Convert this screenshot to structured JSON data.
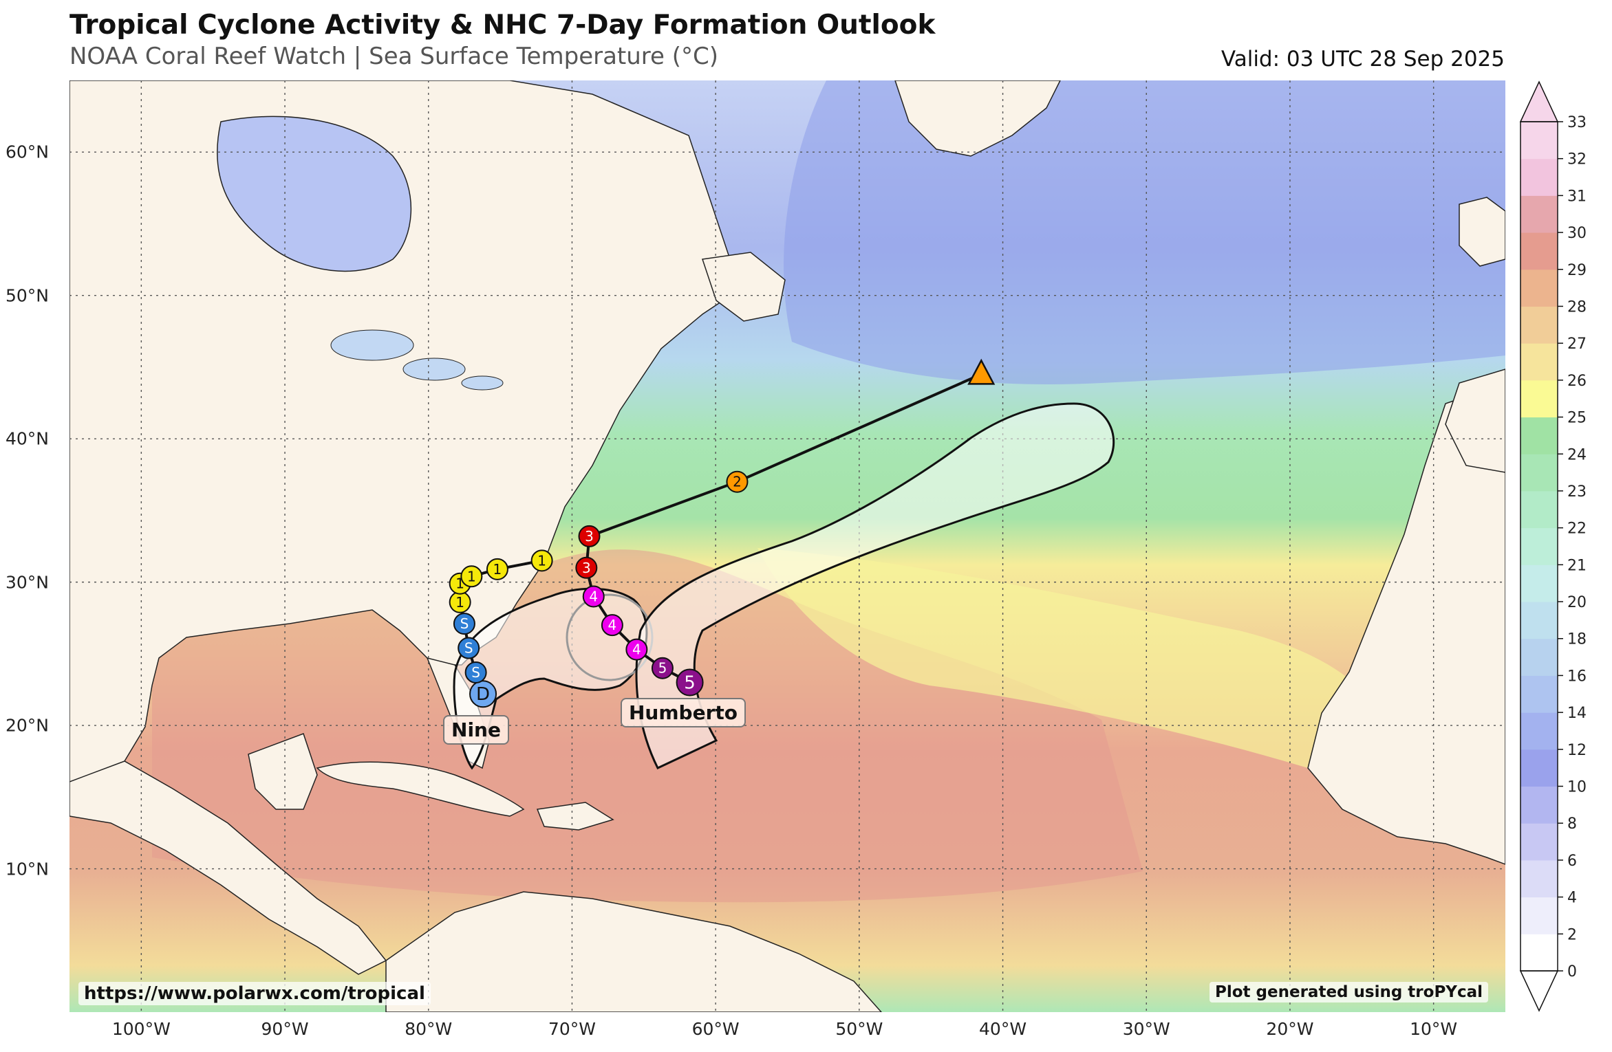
{
  "header": {
    "title": "Tropical Cyclone Activity & NHC 7-Day Formation Outlook",
    "subtitle": "NOAA Coral Reef Watch | Sea Surface Temperature (°C)",
    "valid": "Valid: 03 UTC 28 Sep 2025"
  },
  "map": {
    "lon_range": [
      -105,
      -5
    ],
    "lat_range": [
      0,
      65
    ],
    "lon_labels": [
      {
        "lon": -100,
        "label": "100°W"
      },
      {
        "lon": -90,
        "label": "90°W"
      },
      {
        "lon": -80,
        "label": "80°W"
      },
      {
        "lon": -70,
        "label": "70°W"
      },
      {
        "lon": -60,
        "label": "60°W"
      },
      {
        "lon": -50,
        "label": "50°W"
      },
      {
        "lon": -40,
        "label": "40°W"
      },
      {
        "lon": -30,
        "label": "30°W"
      },
      {
        "lon": -20,
        "label": "20°W"
      },
      {
        "lon": -10,
        "label": "10°W"
      }
    ],
    "lat_labels": [
      {
        "lat": 60,
        "label": "60°N"
      },
      {
        "lat": 50,
        "label": "50°N"
      },
      {
        "lat": 40,
        "label": "40°N"
      },
      {
        "lat": 30,
        "label": "30°N"
      },
      {
        "lat": 20,
        "label": "20°N"
      },
      {
        "lat": 10,
        "label": "10°N"
      }
    ],
    "colors": {
      "land": "#faf3e8",
      "coast": "#222222",
      "grid": "#555555"
    }
  },
  "colorbar": {
    "ticks": [
      "0",
      "2",
      "4",
      "6",
      "8",
      "10",
      "12",
      "14",
      "16",
      "18",
      "20",
      "21",
      "22",
      "23",
      "24",
      "25",
      "26",
      "27",
      "28",
      "29",
      "30",
      "31",
      "32",
      "33"
    ],
    "colors": [
      "#ffffff",
      "#eeeefb",
      "#dcdcf7",
      "#c8c8f3",
      "#b2b6f0",
      "#9aa2ec",
      "#a3b2ef",
      "#aec4f0",
      "#b7d2ee",
      "#bfe0ee",
      "#c5ecea",
      "#bdeed9",
      "#b2ebc8",
      "#a8e6b5",
      "#a0e2a4",
      "#fafa94",
      "#f6e49c",
      "#f1cd98",
      "#ecb48e",
      "#e59c8f",
      "#e6a7ad",
      "#f2c4de",
      "#f6d6ea"
    ]
  },
  "storms": [
    {
      "name": "Nine",
      "track": [
        {
          "lon": -76.2,
          "lat": 22.2,
          "cat": "D",
          "color": "#6fa8f0"
        },
        {
          "lon": -76.7,
          "lat": 23.7,
          "cat": "S",
          "color": "#2f7fd6"
        },
        {
          "lon": -77.2,
          "lat": 25.4,
          "cat": "S",
          "color": "#2f7fd6"
        },
        {
          "lon": -77.5,
          "lat": 27.1,
          "cat": "S",
          "color": "#2f7fd6"
        },
        {
          "lon": -77.8,
          "lat": 28.6,
          "cat": "1",
          "color": "#f5e80a"
        },
        {
          "lon": -77.8,
          "lat": 29.9,
          "cat": "1",
          "color": "#f5e80a"
        },
        {
          "lon": -77.0,
          "lat": 30.4,
          "cat": "1",
          "color": "#f5e80a"
        },
        {
          "lon": -75.2,
          "lat": 30.9,
          "cat": "1",
          "color": "#f5e80a"
        },
        {
          "lon": -72.1,
          "lat": 31.5,
          "cat": "1",
          "color": "#f5e80a"
        }
      ]
    },
    {
      "name": "Humberto",
      "track": [
        {
          "lon": -61.8,
          "lat": 23.0,
          "cat": "5",
          "color": "#8b108b"
        },
        {
          "lon": -63.7,
          "lat": 24.0,
          "cat": "5",
          "color": "#8b108b"
        },
        {
          "lon": -65.5,
          "lat": 25.3,
          "cat": "4",
          "color": "#ee00ee"
        },
        {
          "lon": -67.2,
          "lat": 27.0,
          "cat": "4",
          "color": "#ee00ee"
        },
        {
          "lon": -68.5,
          "lat": 29.0,
          "cat": "4",
          "color": "#ee00ee"
        },
        {
          "lon": -69.0,
          "lat": 31.0,
          "cat": "3",
          "color": "#dd0000"
        },
        {
          "lon": -68.8,
          "lat": 33.2,
          "cat": "3",
          "color": "#dd0000"
        },
        {
          "lon": -58.5,
          "lat": 37.0,
          "cat": "2",
          "color": "#ff9900"
        },
        {
          "lon": -41.5,
          "lat": 44.5,
          "cat": "",
          "color": "#ff9900"
        }
      ]
    }
  ],
  "credits": {
    "left": "https://www.polarwx.com/tropical",
    "right": "Plot generated using troPYcal"
  }
}
